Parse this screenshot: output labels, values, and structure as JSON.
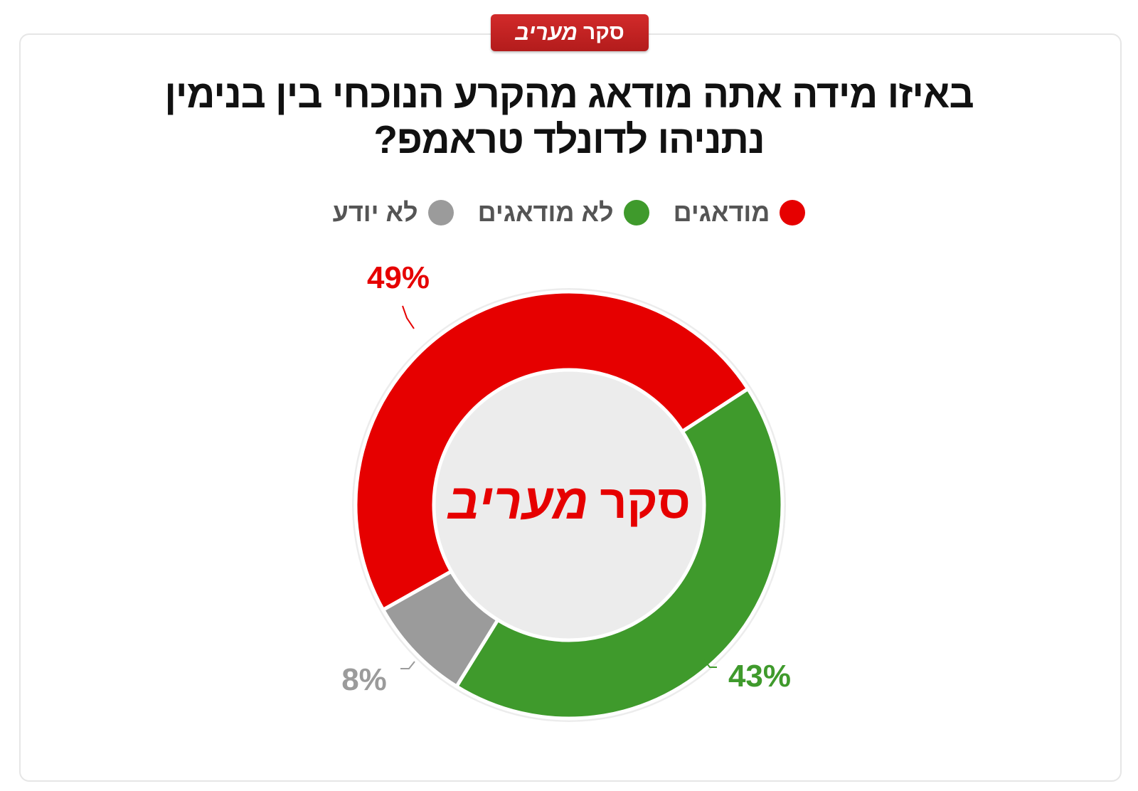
{
  "badge": {
    "prefix": "סקר",
    "brand": "מעריב"
  },
  "chart_data": {
    "type": "pie",
    "title": "באיזו מידה אתה מודאג מהקרע הנוכחי בין בנימין נתניהו לדונלד טראמפ?",
    "legend_position": "top",
    "donut": true,
    "series": [
      {
        "name": "מודאגים",
        "value": 49,
        "label": "49%",
        "color": "#e60000"
      },
      {
        "name": "לא מודאגים",
        "value": 43,
        "label": "43%",
        "color": "#3f9a2c"
      },
      {
        "name": "לא יודע",
        "value": 8,
        "label": "8%",
        "color": "#9b9b9b"
      }
    ],
    "center_text": {
      "prefix": "סקר",
      "brand": "מעריב"
    }
  }
}
